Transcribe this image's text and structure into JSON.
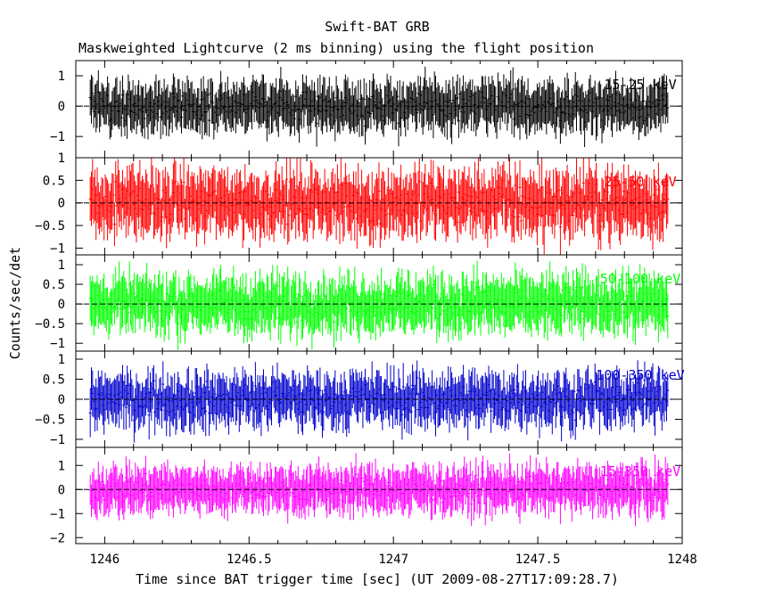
{
  "chart_data": {
    "type": "line",
    "title": "Swift-BAT GRB",
    "subtitle": "Maskweighted Lightcurve (2 ms binning) using the flight position",
    "xlabel": "Time since BAT trigger time [sec] (UT 2009-08-27T17:09:28.7)",
    "ylabel": "Counts/sec/det",
    "xlim": [
      1245.9,
      1248.0
    ],
    "x_ticks": [
      1246,
      1246.5,
      1247,
      1247.5,
      1248
    ],
    "x_tick_labels": [
      "1246",
      "1246.5",
      "1247",
      "1247.5",
      "1248"
    ],
    "data_range": [
      1245.95,
      1247.95
    ],
    "bin_width": 0.002,
    "panels": [
      {
        "band": "15-25 keV",
        "color": "#000000",
        "ylim": [
          -1.7,
          1.5
        ],
        "y_ticks": [
          -1,
          0,
          1
        ],
        "y_tick_labels": [
          "−1",
          "0",
          "1"
        ],
        "typical_error": 0.65,
        "scatter": 0.32
      },
      {
        "band": "25-50 keV",
        "color": "#ff0000",
        "ylim": [
          -1.15,
          1.0
        ],
        "y_ticks": [
          -1,
          -0.5,
          0,
          0.5,
          1
        ],
        "y_tick_labels": [
          "−1",
          "−0.5",
          "0",
          "0.5",
          "1"
        ],
        "typical_error": 0.55,
        "scatter": 0.3
      },
      {
        "band": "50-100 keV",
        "color": "#00ff00",
        "ylim": [
          -1.2,
          1.25
        ],
        "y_ticks": [
          -1,
          -0.5,
          0,
          0.5,
          1
        ],
        "y_tick_labels": [
          "−1",
          "−0.5",
          "0",
          "0.5",
          "1"
        ],
        "typical_error": 0.55,
        "scatter": 0.3
      },
      {
        "band": "100-350 keV",
        "color": "#0000cc",
        "ylim": [
          -1.2,
          1.2
        ],
        "y_ticks": [
          -1,
          -0.5,
          0,
          0.5,
          1
        ],
        "y_tick_labels": [
          "−1",
          "−0.5",
          "0",
          "0.5",
          "1"
        ],
        "typical_error": 0.5,
        "scatter": 0.28
      },
      {
        "band": "15-350 keV",
        "color": "#ff00ff",
        "ylim": [
          -2.25,
          1.75
        ],
        "y_ticks": [
          -2,
          -1,
          0,
          1
        ],
        "y_tick_labels": [
          "−2",
          "−1",
          "0",
          "1"
        ],
        "typical_error": 0.75,
        "scatter": 0.38
      }
    ]
  }
}
